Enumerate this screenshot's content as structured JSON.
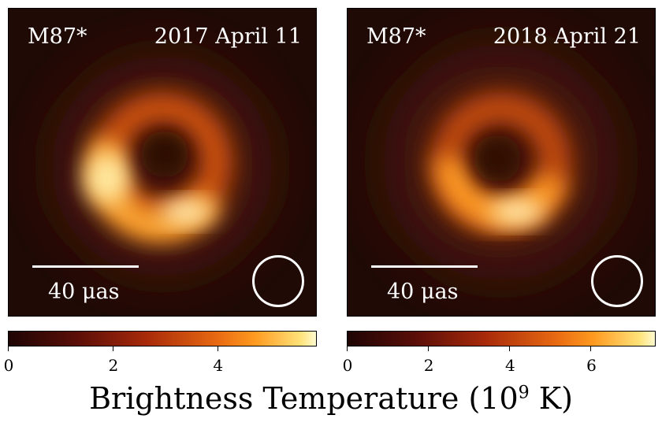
{
  "chart_data": [
    {
      "type": "heatmap",
      "source_label": "M87*",
      "date_label": "2017 April 11",
      "scale_bar": "40 μas",
      "colorbar": {
        "range": [
          0,
          5.9
        ],
        "ticks": [
          "0",
          "2",
          "4"
        ]
      }
    },
    {
      "type": "heatmap",
      "source_label": "M87*",
      "date_label": "2018 April 21",
      "scale_bar": "40 μas",
      "colorbar": {
        "range": [
          0,
          7.6
        ],
        "ticks": [
          "0",
          "2",
          "4",
          "6"
        ]
      }
    }
  ],
  "colorbar_label": "Brightness Temperature (10",
  "colorbar_label_exp": "9",
  "colorbar_label_unit": " K)",
  "colors": {
    "dark": "#1f0a05",
    "mid": "#a82a0a",
    "bright": "#ffe27a"
  }
}
